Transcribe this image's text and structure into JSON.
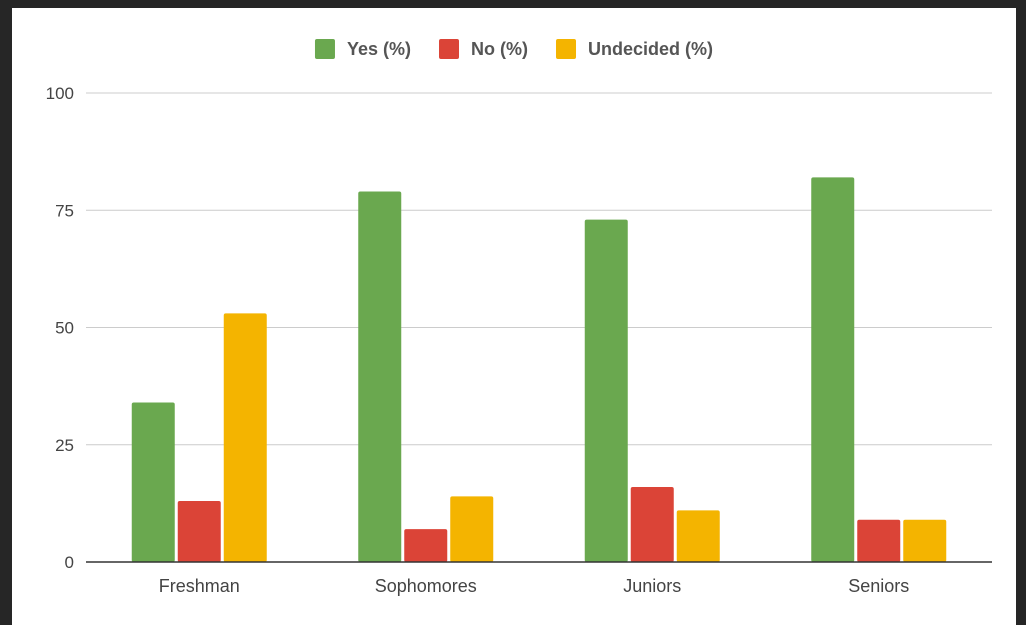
{
  "chart_data": {
    "type": "bar",
    "title": "",
    "xlabel": "",
    "ylabel": "",
    "categories": [
      "Freshman",
      "Sophomores",
      "Juniors",
      "Seniors"
    ],
    "series": [
      {
        "name": "Yes (%)",
        "color": "#6aa84f",
        "values": [
          34,
          79,
          73,
          82
        ]
      },
      {
        "name": "No (%)",
        "color": "#db4437",
        "values": [
          13,
          7,
          16,
          9
        ]
      },
      {
        "name": "Undecided (%)",
        "color": "#f4b400",
        "values": [
          53,
          14,
          11,
          9
        ]
      }
    ],
    "ylim": [
      0,
      100
    ],
    "yticks": [
      "0",
      "25",
      "50",
      "75",
      "100"
    ],
    "grid": true,
    "legend_position": "top-center"
  }
}
